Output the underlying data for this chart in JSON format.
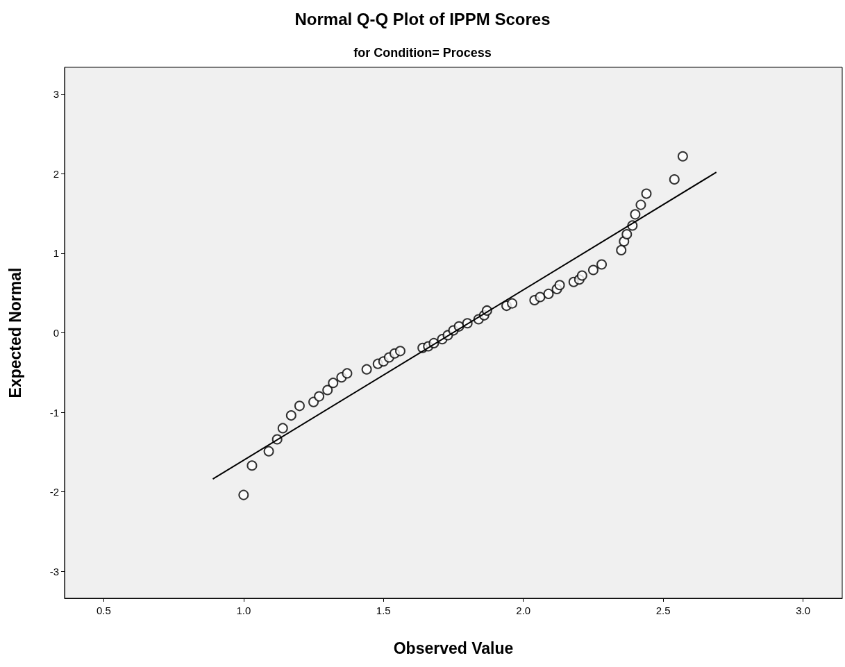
{
  "chart_data": {
    "type": "scatter",
    "title": "Normal Q-Q Plot of IPPM Scores",
    "subtitle": "for Condition= Process",
    "xlabel": "Observed Value",
    "ylabel": "Expected Normal",
    "marker": "circle",
    "grid": false,
    "xlim": [
      0.36,
      3.14
    ],
    "ylim": [
      -3.34,
      3.34
    ],
    "xticks": [
      {
        "value": 0.5,
        "label": "0.5"
      },
      {
        "value": 1,
        "label": "1.0"
      },
      {
        "value": 1.5,
        "label": "1.5"
      },
      {
        "value": 2,
        "label": "2.0"
      },
      {
        "value": 2.5,
        "label": "2.5"
      },
      {
        "value": 3,
        "label": "3.0"
      }
    ],
    "yticks": [
      -3,
      -2,
      -1,
      0,
      1,
      2,
      3
    ],
    "series": [
      {
        "color": "#000000",
        "x": [
          1.0,
          1.03,
          1.09,
          1.12,
          1.14,
          1.17,
          1.2,
          1.25,
          1.27,
          1.3,
          1.32,
          1.35,
          1.37,
          1.44,
          1.48,
          1.5,
          1.52,
          1.54,
          1.56,
          1.64,
          1.66,
          1.68,
          1.71,
          1.73,
          1.75,
          1.77,
          1.8,
          1.84,
          1.86,
          1.87,
          1.94,
          1.96,
          2.04,
          2.06,
          2.09,
          2.12,
          2.13,
          2.18,
          2.2,
          2.21,
          2.25,
          2.28,
          2.35,
          2.36,
          2.37,
          2.39,
          2.4,
          2.42,
          2.44,
          2.54,
          2.57
        ],
        "values": [
          -2.04,
          -1.67,
          -1.49,
          -1.34,
          -1.2,
          -1.04,
          -0.92,
          -0.87,
          -0.8,
          -0.72,
          -0.63,
          -0.56,
          -0.51,
          -0.46,
          -0.39,
          -0.36,
          -0.31,
          -0.26,
          -0.23,
          -0.19,
          -0.17,
          -0.13,
          -0.08,
          -0.03,
          0.03,
          0.08,
          0.12,
          0.17,
          0.22,
          0.28,
          0.34,
          0.37,
          0.41,
          0.45,
          0.49,
          0.55,
          0.6,
          0.64,
          0.67,
          0.72,
          0.79,
          0.86,
          1.04,
          1.15,
          1.24,
          1.35,
          1.49,
          1.61,
          1.75,
          1.93,
          2.22
        ]
      },
      {
        "type": "line",
        "color": "#000000",
        "x": [
          0.89,
          2.69
        ],
        "values": [
          -1.84,
          2.02
        ],
        "line_style": "solid",
        "marker": "none"
      }
    ]
  }
}
